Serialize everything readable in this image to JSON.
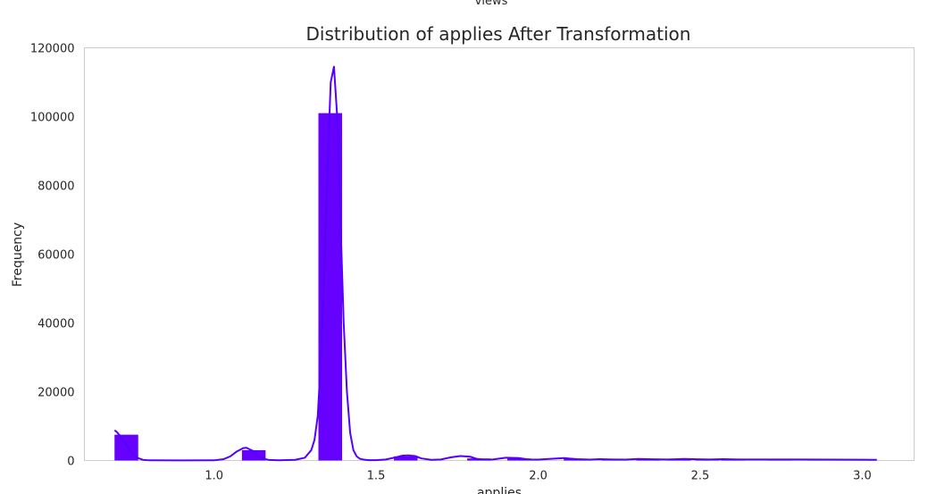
{
  "top_label": "views",
  "chart_data": {
    "type": "bar",
    "title": "Distribution of applies After Transformation",
    "xlabel": "applies",
    "ylabel": "Frequency",
    "xlim": [
      0.6,
      3.16
    ],
    "ylim": [
      0,
      120000
    ],
    "grid": false,
    "bar_color": "#6600ff",
    "kde_color": "#5500ff",
    "xticks": [
      1.0,
      1.5,
      2.0,
      2.5,
      3.0
    ],
    "xtick_labels": [
      "1.0",
      "1.5",
      "2.0",
      "2.5",
      "3.0"
    ],
    "yticks": [
      0,
      20000,
      40000,
      60000,
      80000,
      100000,
      120000
    ],
    "ytick_labels": [
      "0",
      "20000",
      "40000",
      "60000",
      "80000",
      "100000",
      "120000"
    ],
    "bins": [
      {
        "x0": 0.693,
        "x1": 0.766,
        "value": 7500
      },
      {
        "x0": 1.086,
        "x1": 1.159,
        "value": 3000
      },
      {
        "x0": 1.322,
        "x1": 1.395,
        "value": 101000
      },
      {
        "x0": 1.555,
        "x1": 1.628,
        "value": 1200
      },
      {
        "x0": 1.781,
        "x1": 1.854,
        "value": 600
      },
      {
        "x0": 1.905,
        "x1": 1.978,
        "value": 600
      },
      {
        "x0": 2.079,
        "x1": 2.152,
        "value": 500
      },
      {
        "x0": 2.197,
        "x1": 2.27,
        "value": 400
      },
      {
        "x0": 2.303,
        "x1": 2.376,
        "value": 350
      },
      {
        "x0": 2.398,
        "x1": 2.471,
        "value": 300
      },
      {
        "x0": 2.485,
        "x1": 2.558,
        "value": 300
      },
      {
        "x0": 2.565,
        "x1": 2.638,
        "value": 250
      },
      {
        "x0": 2.708,
        "x1": 2.781,
        "value": 250
      },
      {
        "x0": 2.833,
        "x1": 2.906,
        "value": 200
      },
      {
        "x0": 2.944,
        "x1": 3.017,
        "value": 200
      }
    ],
    "kde": {
      "x": [
        0.693,
        0.7,
        0.72,
        0.74,
        0.76,
        0.78,
        0.8,
        0.9,
        1.0,
        1.03,
        1.05,
        1.07,
        1.09,
        1.1,
        1.12,
        1.14,
        1.17,
        1.2,
        1.25,
        1.28,
        1.3,
        1.31,
        1.32,
        1.33,
        1.34,
        1.35,
        1.36,
        1.37,
        1.38,
        1.39,
        1.4,
        1.41,
        1.42,
        1.43,
        1.44,
        1.45,
        1.46,
        1.47,
        1.48,
        1.5,
        1.53,
        1.56,
        1.58,
        1.6,
        1.62,
        1.64,
        1.67,
        1.7,
        1.73,
        1.76,
        1.79,
        1.81,
        1.83,
        1.86,
        1.9,
        1.94,
        1.97,
        2.0,
        2.04,
        2.08,
        2.12,
        2.16,
        2.19,
        2.23,
        2.27,
        2.31,
        2.35,
        2.4,
        2.45,
        2.49,
        2.53,
        2.57,
        2.62,
        2.7,
        2.8,
        2.9,
        3.0,
        3.045
      ],
      "y": [
        8800,
        8300,
        6000,
        3000,
        900,
        200,
        50,
        20,
        50,
        400,
        1200,
        2600,
        3600,
        3700,
        2800,
        800,
        150,
        80,
        200,
        800,
        3000,
        6000,
        13000,
        30000,
        55000,
        85000,
        110000,
        114500,
        100000,
        70000,
        40000,
        20000,
        8000,
        3000,
        1200,
        500,
        300,
        150,
        100,
        100,
        300,
        900,
        1400,
        1500,
        1300,
        600,
        200,
        300,
        900,
        1300,
        1100,
        500,
        250,
        300,
        800,
        700,
        300,
        250,
        500,
        700,
        400,
        250,
        400,
        300,
        250,
        450,
        350,
        300,
        450,
        350,
        300,
        400,
        300,
        300,
        280,
        260,
        230,
        200
      ]
    }
  }
}
